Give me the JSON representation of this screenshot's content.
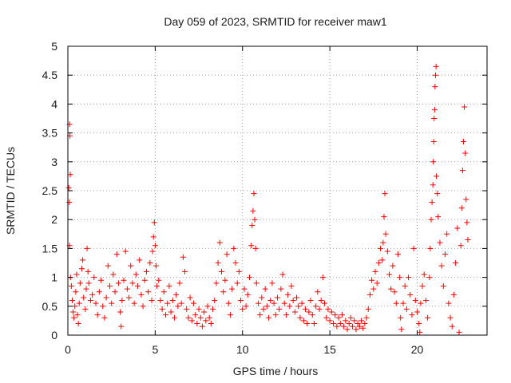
{
  "chart_data": {
    "type": "scatter",
    "title": "Day 059 of 2023, SRMTID for receiver maw1",
    "xlabel": "GPS time / hours",
    "ylabel": "SRMTID / TECUs",
    "xlim": [
      0,
      24
    ],
    "ylim": [
      0,
      5
    ],
    "grid": true,
    "legend": "none",
    "marker": "+",
    "x_ticks": [
      {
        "value": 0,
        "label": "0"
      },
      {
        "value": 5,
        "label": "5"
      },
      {
        "value": 10,
        "label": "10"
      },
      {
        "value": 15,
        "label": "15"
      },
      {
        "value": 20,
        "label": "20"
      }
    ],
    "y_ticks": [
      {
        "value": 0,
        "label": "0"
      },
      {
        "value": 0.5,
        "label": "0.5"
      },
      {
        "value": 1,
        "label": "1"
      },
      {
        "value": 1.5,
        "label": "1.5"
      },
      {
        "value": 2,
        "label": "2"
      },
      {
        "value": 2.5,
        "label": "2.5"
      },
      {
        "value": 3,
        "label": "3"
      },
      {
        "value": 3.5,
        "label": "3.5"
      },
      {
        "value": 4,
        "label": "4"
      },
      {
        "value": 4.5,
        "label": "4.5"
      },
      {
        "value": 5,
        "label": "5"
      }
    ],
    "series": [
      {
        "name": "maw1",
        "color": "#ff0000",
        "points": [
          [
            0.05,
            2.55
          ],
          [
            0.08,
            2.3
          ],
          [
            0.1,
            3.65
          ],
          [
            0.12,
            3.45
          ],
          [
            0.14,
            2.78
          ],
          [
            0.1,
            1.55
          ],
          [
            0.15,
            1.0
          ],
          [
            0.2,
            0.85
          ],
          [
            0.25,
            0.6
          ],
          [
            0.3,
            0.4
          ],
          [
            0.35,
            0.3
          ],
          [
            0.4,
            0.5
          ],
          [
            0.45,
            0.75
          ],
          [
            0.5,
            1.05
          ],
          [
            0.55,
            0.35
          ],
          [
            0.6,
            0.2
          ],
          [
            0.65,
            0.55
          ],
          [
            0.7,
            0.9
          ],
          [
            0.8,
            1.15
          ],
          [
            0.85,
            1.3
          ],
          [
            0.9,
            0.65
          ],
          [
            1.0,
            0.45
          ],
          [
            1.05,
            0.8
          ],
          [
            1.1,
            1.5
          ],
          [
            1.15,
            1.1
          ],
          [
            1.2,
            0.9
          ],
          [
            1.3,
            0.6
          ],
          [
            1.4,
            0.7
          ],
          [
            1.5,
            1.0
          ],
          [
            1.6,
            0.55
          ],
          [
            1.7,
            0.35
          ],
          [
            1.8,
            0.75
          ],
          [
            1.9,
            0.95
          ],
          [
            2.0,
            0.5
          ],
          [
            2.1,
            0.3
          ],
          [
            2.2,
            0.65
          ],
          [
            2.3,
            1.2
          ],
          [
            2.4,
            0.85
          ],
          [
            2.5,
            0.55
          ],
          [
            2.6,
            1.05
          ],
          [
            2.7,
            0.75
          ],
          [
            2.8,
            1.4
          ],
          [
            2.9,
            0.9
          ],
          [
            3.0,
            0.4
          ],
          [
            3.05,
            0.15
          ],
          [
            3.1,
            0.6
          ],
          [
            3.2,
            0.95
          ],
          [
            3.3,
            1.45
          ],
          [
            3.4,
            0.8
          ],
          [
            3.5,
            0.65
          ],
          [
            3.6,
            1.2
          ],
          [
            3.7,
            0.9
          ],
          [
            3.8,
            0.55
          ],
          [
            3.9,
            1.05
          ],
          [
            4.0,
            0.85
          ],
          [
            4.1,
            1.3
          ],
          [
            4.2,
            0.7
          ],
          [
            4.3,
            0.5
          ],
          [
            4.4,
            0.95
          ],
          [
            4.5,
            1.1
          ],
          [
            4.6,
            0.75
          ],
          [
            4.7,
            1.25
          ],
          [
            4.8,
            0.6
          ],
          [
            4.85,
            1.45
          ],
          [
            4.9,
            1.7
          ],
          [
            4.95,
            1.95
          ],
          [
            5.0,
            1.55
          ],
          [
            5.05,
            1.2
          ],
          [
            5.1,
            0.85
          ],
          [
            5.2,
            0.95
          ],
          [
            5.3,
            0.6
          ],
          [
            5.4,
            0.45
          ],
          [
            5.5,
            0.75
          ],
          [
            5.6,
            0.35
          ],
          [
            5.7,
            0.55
          ],
          [
            5.8,
            0.85
          ],
          [
            5.9,
            0.4
          ],
          [
            6.0,
            0.6
          ],
          [
            6.1,
            0.3
          ],
          [
            6.2,
            0.7
          ],
          [
            6.3,
            0.5
          ],
          [
            6.4,
            0.9
          ],
          [
            6.5,
            0.55
          ],
          [
            6.6,
            1.35
          ],
          [
            6.7,
            1.1
          ],
          [
            6.8,
            0.45
          ],
          [
            6.9,
            0.3
          ],
          [
            7.0,
            0.65
          ],
          [
            7.1,
            0.25
          ],
          [
            7.2,
            0.55
          ],
          [
            7.3,
            0.35
          ],
          [
            7.4,
            0.2
          ],
          [
            7.5,
            0.45
          ],
          [
            7.6,
            0.3
          ],
          [
            7.7,
            0.15
          ],
          [
            7.8,
            0.4
          ],
          [
            7.9,
            0.25
          ],
          [
            8.0,
            0.5
          ],
          [
            8.1,
            0.3
          ],
          [
            8.2,
            0.2
          ],
          [
            8.3,
            0.45
          ],
          [
            8.4,
            0.6
          ],
          [
            8.5,
            0.9
          ],
          [
            8.6,
            1.25
          ],
          [
            8.7,
            1.6
          ],
          [
            8.8,
            1.1
          ],
          [
            8.9,
            0.75
          ],
          [
            9.0,
            0.95
          ],
          [
            9.1,
            1.4
          ],
          [
            9.2,
            0.55
          ],
          [
            9.3,
            0.35
          ],
          [
            9.4,
            0.8
          ],
          [
            9.5,
            1.5
          ],
          [
            9.6,
            1.25
          ],
          [
            9.7,
            0.9
          ],
          [
            9.8,
            1.1
          ],
          [
            9.9,
            0.6
          ],
          [
            10.0,
            0.45
          ],
          [
            10.1,
            0.8
          ],
          [
            10.2,
            0.5
          ],
          [
            10.3,
            0.7
          ],
          [
            10.4,
            1.0
          ],
          [
            10.5,
            1.55
          ],
          [
            10.55,
            1.9
          ],
          [
            10.6,
            2.15
          ],
          [
            10.65,
            2.45
          ],
          [
            10.7,
            2.0
          ],
          [
            10.75,
            1.5
          ],
          [
            10.8,
            0.9
          ],
          [
            10.9,
            0.55
          ],
          [
            11.0,
            0.35
          ],
          [
            11.1,
            0.65
          ],
          [
            11.2,
            0.45
          ],
          [
            11.3,
            0.8
          ],
          [
            11.4,
            0.5
          ],
          [
            11.5,
            0.3
          ],
          [
            11.6,
            0.6
          ],
          [
            11.7,
            0.9
          ],
          [
            11.8,
            0.55
          ],
          [
            11.9,
            0.35
          ],
          [
            12.0,
            0.65
          ],
          [
            12.1,
            0.45
          ],
          [
            12.2,
            0.8
          ],
          [
            12.3,
            1.05
          ],
          [
            12.4,
            0.55
          ],
          [
            12.5,
            0.35
          ],
          [
            12.6,
            0.7
          ],
          [
            12.7,
            0.5
          ],
          [
            12.8,
            0.85
          ],
          [
            12.9,
            0.6
          ],
          [
            13.0,
            0.4
          ],
          [
            13.1,
            0.65
          ],
          [
            13.2,
            0.5
          ],
          [
            13.3,
            0.3
          ],
          [
            13.4,
            0.55
          ],
          [
            13.5,
            0.25
          ],
          [
            13.6,
            0.45
          ],
          [
            13.7,
            0.2
          ],
          [
            13.8,
            0.4
          ],
          [
            13.9,
            0.6
          ],
          [
            14.0,
            0.35
          ],
          [
            14.1,
            0.2
          ],
          [
            14.2,
            0.5
          ],
          [
            14.3,
            0.75
          ],
          [
            14.4,
            0.45
          ],
          [
            14.5,
            0.6
          ],
          [
            14.6,
            1.0
          ],
          [
            14.7,
            0.55
          ],
          [
            14.8,
            0.3
          ],
          [
            14.9,
            0.45
          ],
          [
            15.0,
            0.25
          ],
          [
            15.1,
            0.4
          ],
          [
            15.2,
            0.2
          ],
          [
            15.3,
            0.35
          ],
          [
            15.4,
            0.15
          ],
          [
            15.5,
            0.3
          ],
          [
            15.6,
            0.2
          ],
          [
            15.7,
            0.35
          ],
          [
            15.8,
            0.15
          ],
          [
            15.9,
            0.25
          ],
          [
            16.0,
            0.1
          ],
          [
            16.1,
            0.2
          ],
          [
            16.2,
            0.3
          ],
          [
            16.3,
            0.15
          ],
          [
            16.4,
            0.25
          ],
          [
            16.5,
            0.1
          ],
          [
            16.6,
            0.2
          ],
          [
            16.7,
            0.15
          ],
          [
            16.8,
            0.25
          ],
          [
            16.9,
            0.12
          ],
          [
            17.0,
            0.2
          ],
          [
            17.1,
            0.3
          ],
          [
            17.2,
            0.45
          ],
          [
            17.3,
            0.7
          ],
          [
            17.4,
            0.95
          ],
          [
            17.5,
            0.8
          ],
          [
            17.6,
            1.1
          ],
          [
            17.7,
            0.9
          ],
          [
            17.8,
            1.25
          ],
          [
            17.9,
            1.5
          ],
          [
            18.0,
            1.3
          ],
          [
            18.05,
            1.6
          ],
          [
            18.1,
            2.05
          ],
          [
            18.15,
            2.45
          ],
          [
            18.2,
            1.75
          ],
          [
            18.3,
            1.45
          ],
          [
            18.4,
            1.05
          ],
          [
            18.5,
            0.8
          ],
          [
            18.6,
            1.2
          ],
          [
            18.7,
            0.75
          ],
          [
            18.8,
            0.55
          ],
          [
            18.9,
            1.4
          ],
          [
            19.0,
            1.0
          ],
          [
            19.05,
            0.3
          ],
          [
            19.1,
            0.1
          ],
          [
            19.2,
            0.55
          ],
          [
            19.3,
            0.85
          ],
          [
            19.4,
            0.45
          ],
          [
            19.5,
            1.0
          ],
          [
            19.6,
            0.7
          ],
          [
            19.7,
            0.35
          ],
          [
            19.8,
            1.5
          ],
          [
            19.9,
            0.6
          ],
          [
            20.0,
            0.4
          ],
          [
            20.1,
            0.2
          ],
          [
            20.15,
            0.05
          ],
          [
            20.2,
            0.55
          ],
          [
            20.3,
            0.85
          ],
          [
            20.4,
            1.05
          ],
          [
            20.5,
            0.6
          ],
          [
            20.6,
            0.3
          ],
          [
            20.7,
            1.0
          ],
          [
            20.75,
            1.5
          ],
          [
            20.8,
            2.0
          ],
          [
            20.85,
            2.3
          ],
          [
            20.9,
            2.6
          ],
          [
            20.92,
            3.0
          ],
          [
            20.95,
            3.35
          ],
          [
            20.97,
            3.75
          ],
          [
            21.0,
            3.9
          ],
          [
            21.02,
            4.3
          ],
          [
            21.05,
            4.5
          ],
          [
            21.08,
            4.65
          ],
          [
            21.1,
            2.75
          ],
          [
            21.15,
            2.45
          ],
          [
            21.2,
            2.05
          ],
          [
            21.3,
            1.6
          ],
          [
            21.4,
            1.2
          ],
          [
            21.5,
            0.85
          ],
          [
            21.6,
            1.4
          ],
          [
            21.7,
            1.75
          ],
          [
            21.8,
            0.55
          ],
          [
            21.9,
            0.3
          ],
          [
            22.0,
            0.15
          ],
          [
            22.1,
            0.7
          ],
          [
            22.2,
            1.25
          ],
          [
            22.3,
            1.85
          ],
          [
            22.4,
            0.05
          ],
          [
            22.5,
            1.55
          ],
          [
            22.55,
            2.2
          ],
          [
            22.6,
            2.85
          ],
          [
            22.65,
            3.35
          ],
          [
            22.7,
            3.95
          ],
          [
            22.75,
            3.15
          ],
          [
            22.8,
            2.35
          ],
          [
            22.85,
            1.95
          ],
          [
            22.9,
            1.65
          ]
        ]
      }
    ]
  }
}
